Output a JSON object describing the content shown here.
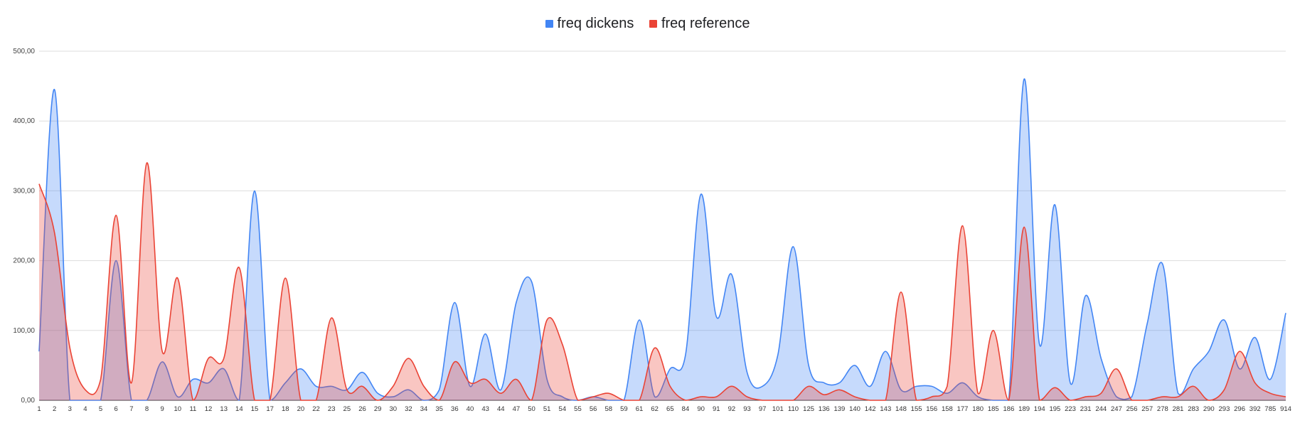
{
  "chart_data": {
    "type": "area",
    "legend_position": "top",
    "grid": true,
    "ylim": [
      0,
      500
    ],
    "yticks": [
      "0,00",
      "100,00",
      "200,00",
      "300,00",
      "400,00",
      "500,00"
    ],
    "categories": [
      "1",
      "2",
      "3",
      "4",
      "5",
      "6",
      "7",
      "8",
      "9",
      "10",
      "11",
      "12",
      "13",
      "14",
      "15",
      "17",
      "18",
      "20",
      "22",
      "23",
      "25",
      "26",
      "29",
      "30",
      "32",
      "34",
      "35",
      "36",
      "40",
      "43",
      "44",
      "47",
      "50",
      "51",
      "54",
      "55",
      "56",
      "58",
      "59",
      "61",
      "62",
      "65",
      "84",
      "90",
      "91",
      "92",
      "93",
      "97",
      "101",
      "110",
      "125",
      "136",
      "139",
      "140",
      "142",
      "143",
      "148",
      "155",
      "156",
      "158",
      "177",
      "180",
      "185",
      "186",
      "189",
      "194",
      "195",
      "223",
      "231",
      "244",
      "247",
      "256",
      "257",
      "278",
      "281",
      "283",
      "290",
      "293",
      "296",
      "392",
      "785",
      "914"
    ],
    "series": [
      {
        "name": "freq dickens",
        "color": "#4285F4",
        "values": [
          70,
          445,
          0,
          0,
          0,
          200,
          0,
          0,
          55,
          5,
          30,
          25,
          45,
          0,
          300,
          0,
          25,
          45,
          20,
          20,
          15,
          40,
          10,
          5,
          15,
          0,
          15,
          140,
          20,
          95,
          15,
          140,
          170,
          30,
          5,
          0,
          5,
          0,
          0,
          115,
          5,
          45,
          65,
          295,
          120,
          180,
          40,
          20,
          65,
          220,
          50,
          25,
          25,
          50,
          20,
          70,
          15,
          20,
          20,
          10,
          25,
          5,
          0,
          0,
          460,
          80,
          280,
          25,
          150,
          60,
          5,
          5,
          110,
          195,
          10,
          45,
          70,
          115,
          45,
          90,
          30,
          125
        ]
      },
      {
        "name": "freq reference",
        "color": "#EA4335",
        "values": [
          310,
          240,
          75,
          15,
          30,
          265,
          25,
          340,
          70,
          175,
          0,
          60,
          60,
          190,
          0,
          0,
          175,
          0,
          0,
          118,
          15,
          20,
          0,
          20,
          60,
          20,
          0,
          55,
          25,
          30,
          10,
          30,
          0,
          115,
          80,
          0,
          5,
          10,
          0,
          0,
          75,
          20,
          0,
          5,
          5,
          20,
          5,
          0,
          0,
          0,
          20,
          8,
          15,
          5,
          0,
          0,
          155,
          0,
          5,
          20,
          250,
          10,
          100,
          0,
          248,
          0,
          18,
          0,
          5,
          10,
          45,
          0,
          0,
          5,
          5,
          20,
          0,
          15,
          70,
          25,
          10,
          5
        ]
      }
    ]
  }
}
